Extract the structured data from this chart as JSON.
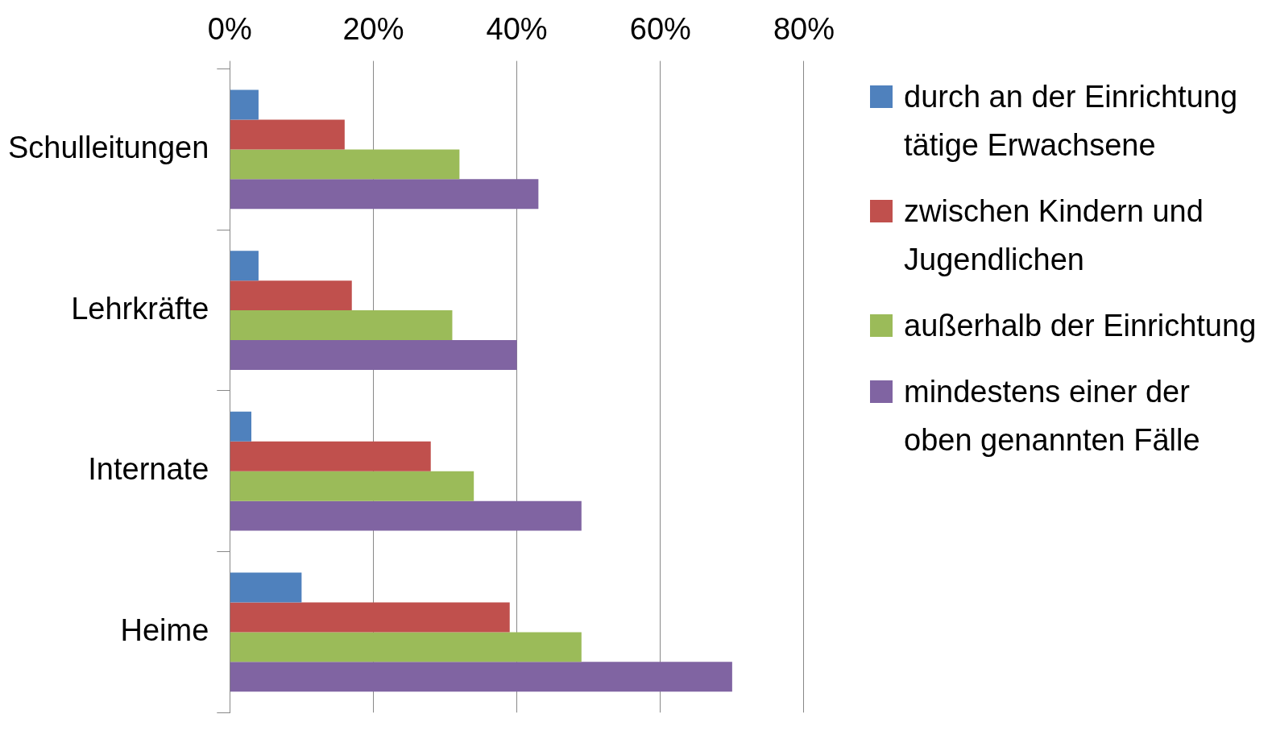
{
  "chart_data": {
    "type": "bar",
    "orientation": "horizontal",
    "categories": [
      "Schulleitungen",
      "Lehrkräfte",
      "Internate",
      "Heime"
    ],
    "series": [
      {
        "name": "durch an der Einrichtung tätige Erwachsene",
        "color": "#4f81bd",
        "values": [
          4,
          4,
          3,
          10
        ]
      },
      {
        "name": "zwischen Kindern und Jugendlichen",
        "color": "#c0504d",
        "values": [
          16,
          17,
          28,
          39
        ]
      },
      {
        "name": "außerhalb der Einrichtung",
        "color": "#9bbb59",
        "values": [
          32,
          31,
          34,
          49
        ]
      },
      {
        "name": "mindestens einer der oben genannten Fälle",
        "color": "#8064a2",
        "values": [
          43,
          40,
          49,
          70
        ]
      }
    ],
    "xlim": [
      0,
      80
    ],
    "xticks": [
      {
        "value": 0,
        "label": "0%"
      },
      {
        "value": 20,
        "label": "20%"
      },
      {
        "value": 40,
        "label": "40%"
      },
      {
        "value": 60,
        "label": "60%"
      },
      {
        "value": 80,
        "label": "80%"
      }
    ],
    "grid": "x",
    "legend": "right"
  }
}
